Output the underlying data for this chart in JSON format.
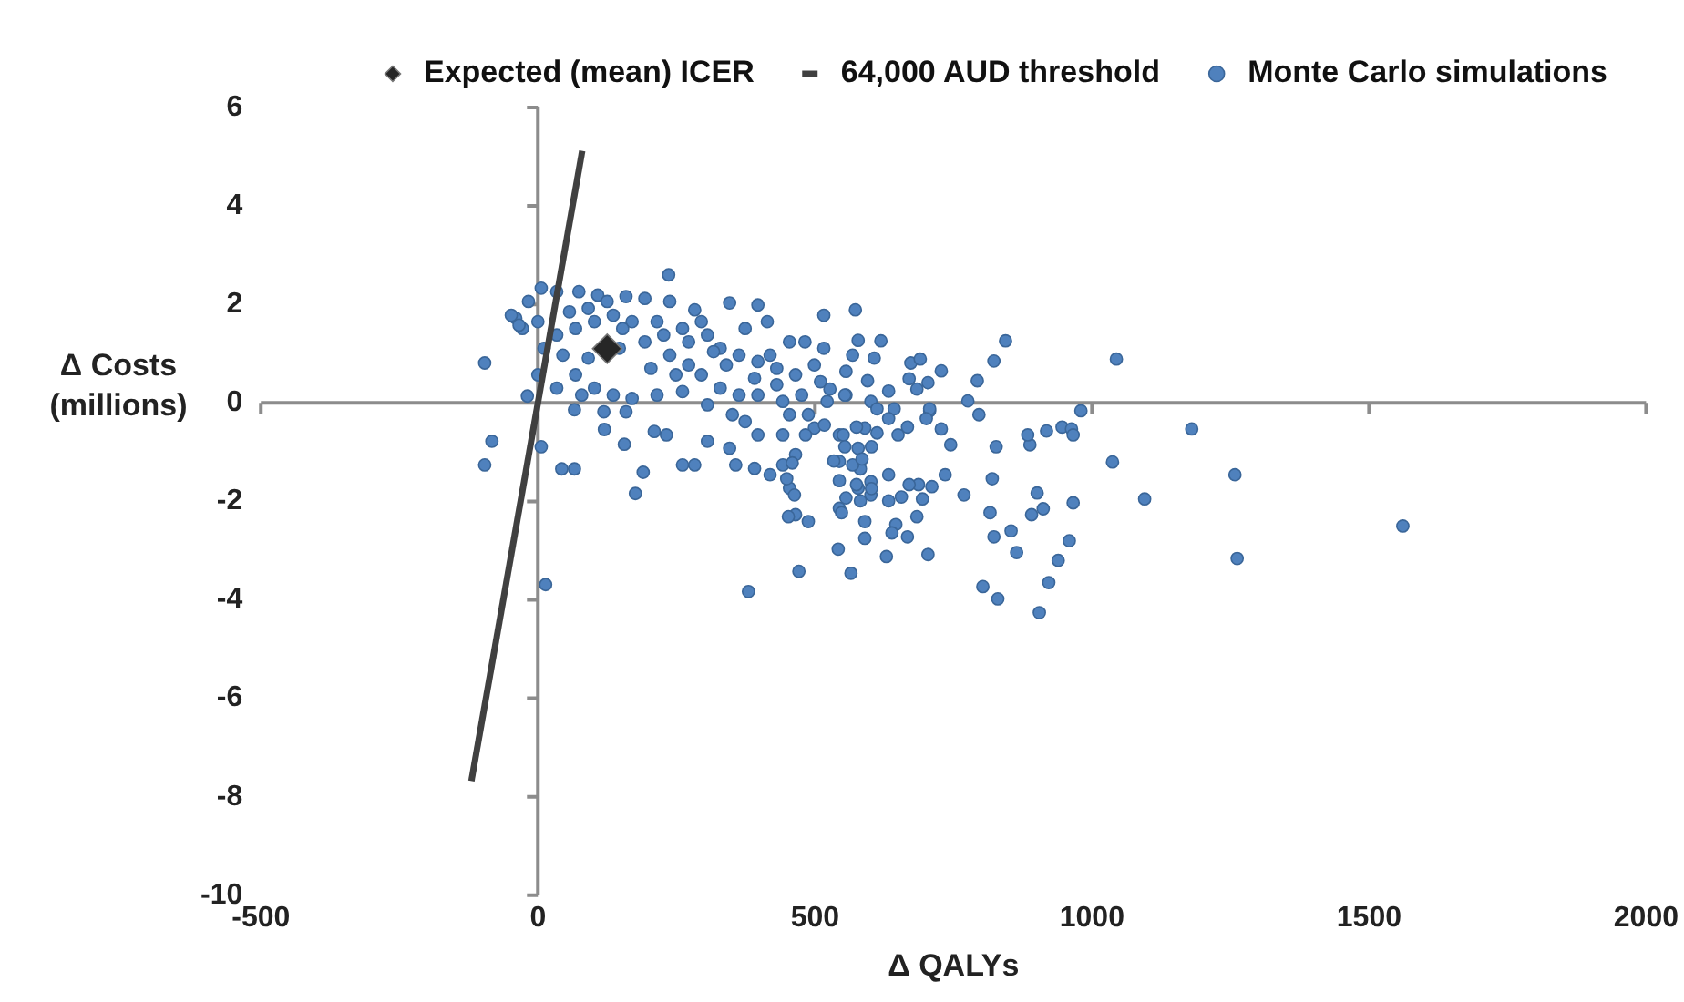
{
  "chart_data": {
    "type": "scatter",
    "xlabel": "Δ QALYs",
    "ylabel": "Δ Costs (millions)",
    "xlim": [
      -500,
      2000
    ],
    "xticks": [
      -500,
      0,
      500,
      1000,
      1500,
      2000
    ],
    "ylim": [
      -10,
      6
    ],
    "yticks": [
      -10,
      -8,
      -6,
      -4,
      -2,
      0,
      2,
      4,
      6
    ],
    "legend": "top",
    "series": [
      {
        "name": "Monte Carlo simulations",
        "marker": "circle",
        "color": "#4f81bd",
        "x": [
          6,
          34,
          74,
          108,
          159,
          193,
          238,
          283,
          346,
          397,
          414,
          454,
          482,
          516,
          573,
          516,
          578,
          607,
          -17,
          -40,
          -28,
          0,
          34,
          68,
          102,
          136,
          170,
          215,
          261,
          306,
          329,
          363,
          397,
          431,
          465,
          510,
          556,
          601,
          11,
          45,
          91,
          147,
          193,
          238,
          272,
          295,
          329,
          363,
          397,
          442,
          488,
          544,
          590,
          68,
          102,
          136,
          170,
          215,
          261,
          306,
          351,
          374,
          397,
          442,
          465,
          499,
          544,
          578,
          601,
          66,
          119,
          159,
          210,
          232,
          261,
          283,
          306,
          346,
          357,
          391,
          419,
          442,
          454,
          465,
          488,
          544,
          556,
          578,
          590,
          601,
          542,
          565,
          471,
          590,
          14,
          380,
          176,
          190,
          156,
          120,
          -96,
          -83,
          -96,
          -19,
          6,
          43,
          66,
          236,
          0,
          57,
          91,
          125,
          153,
          204,
          227,
          249,
          272,
          295,
          317,
          340,
          374,
          391,
          419,
          431,
          454,
          476,
          499,
          522,
          556,
          34,
          79,
          844,
          823,
          793,
          776,
          796,
          888,
          918,
          946,
          963,
          966,
          827,
          820,
          901,
          912,
          891,
          966,
          816,
          823,
          854,
          864,
          959,
          939,
          922,
          905,
          830,
          803,
          769,
          745,
          735,
          728,
          707,
          711,
          684,
          667,
          704,
          629,
          452,
          646,
          639,
          633,
          656,
          694,
          687,
          670,
          582,
          602,
          575,
          633,
          582,
          568,
          534,
          544,
          459,
          449,
          548,
          463,
          619,
          568,
          673,
          690,
          728,
          704,
          670,
          684,
          595,
          554,
          527,
          633,
          643,
          612,
          633,
          707,
          701,
          667,
          650,
          612,
          575,
          551,
          517,
          483,
          554,
          585,
          602,
          1044,
          1037,
          1095,
          1180,
          1258,
          1262,
          1561,
          980,
          884,
          -34,
          -48
        ],
        "values": [
          2.33,
          2.26,
          2.26,
          2.19,
          2.16,
          2.12,
          2.06,
          1.89,
          2.03,
          1.99,
          1.65,
          1.24,
          1.24,
          1.11,
          1.89,
          1.78,
          1.27,
          0.91,
          2.06,
          1.72,
          1.51,
          1.65,
          1.38,
          1.51,
          1.65,
          1.78,
          1.65,
          1.65,
          1.51,
          1.38,
          1.11,
          0.97,
          0.84,
          0.7,
          0.57,
          0.43,
          0.16,
          0.03,
          1.11,
          0.97,
          0.91,
          1.11,
          1.24,
          0.97,
          0.77,
          0.57,
          0.3,
          0.16,
          0.16,
          0.03,
          -0.24,
          -0.65,
          -0.51,
          0.57,
          0.3,
          0.16,
          0.09,
          0.16,
          0.23,
          -0.04,
          -0.24,
          -0.38,
          -0.65,
          -0.65,
          -1.05,
          -0.51,
          -1.19,
          -0.92,
          -1.6,
          -0.14,
          -0.18,
          -0.18,
          -0.58,
          -0.65,
          -1.26,
          -1.26,
          -0.78,
          -0.92,
          -1.26,
          -1.33,
          -1.46,
          -1.26,
          -1.73,
          -2.27,
          -2.41,
          -2.14,
          -1.93,
          -1.73,
          -2.41,
          -1.87,
          -2.97,
          -3.46,
          -3.42,
          -2.75,
          -3.69,
          -3.83,
          -1.84,
          -1.41,
          -0.84,
          -0.54,
          0.81,
          -0.78,
          -1.26,
          0.14,
          -0.89,
          -1.34,
          -1.34,
          2.6,
          0.57,
          1.85,
          1.92,
          2.06,
          1.51,
          0.7,
          1.38,
          0.57,
          1.24,
          1.65,
          1.04,
          0.77,
          1.51,
          0.5,
          0.97,
          0.37,
          -0.24,
          0.16,
          0.77,
          0.03,
          0.64,
          0.3,
          0.16,
          1.26,
          0.85,
          0.45,
          0.04,
          -0.24,
          -0.85,
          -0.57,
          -0.49,
          -0.53,
          -0.65,
          -0.89,
          -1.54,
          -1.83,
          -2.15,
          -2.27,
          -2.03,
          -2.23,
          -2.72,
          -2.6,
          -3.04,
          -2.8,
          -3.2,
          -3.65,
          -4.26,
          -3.98,
          -3.73,
          -1.87,
          -0.85,
          -1.46,
          -0.53,
          -0.16,
          -1.7,
          -2.31,
          -2.72,
          -3.08,
          -3.12,
          -2.31,
          -2.47,
          -2.64,
          -1.99,
          -1.91,
          -1.95,
          -1.66,
          -1.66,
          -1.99,
          -1.74,
          -1.66,
          -1.46,
          -1.34,
          -1.26,
          -1.18,
          -1.58,
          -1.22,
          -1.54,
          -2.23,
          -1.87,
          1.26,
          0.97,
          0.81,
          0.89,
          0.65,
          0.41,
          0.49,
          0.28,
          0.45,
          0.16,
          0.28,
          0.24,
          -0.12,
          -0.12,
          -0.32,
          -0.12,
          -0.32,
          -0.49,
          -0.65,
          -0.61,
          -0.49,
          -0.65,
          -0.45,
          -0.65,
          -0.89,
          -1.14,
          -0.89,
          0.89,
          -1.2,
          -1.95,
          -0.53,
          -1.46,
          -3.16,
          -2.5,
          -0.16,
          -0.65,
          1.58,
          1.78
        ]
      },
      {
        "name": "Expected (mean) ICER",
        "marker": "diamond",
        "color": "#262626",
        "x": [
          125
        ],
        "values": [
          1.1
        ]
      },
      {
        "name": "64,000 AUD threshold",
        "type": "line",
        "marker": "none",
        "line_style": "solid",
        "color": "#404040",
        "x": [
          -120,
          80
        ],
        "values": [
          -7.68,
          5.12
        ]
      }
    ]
  }
}
